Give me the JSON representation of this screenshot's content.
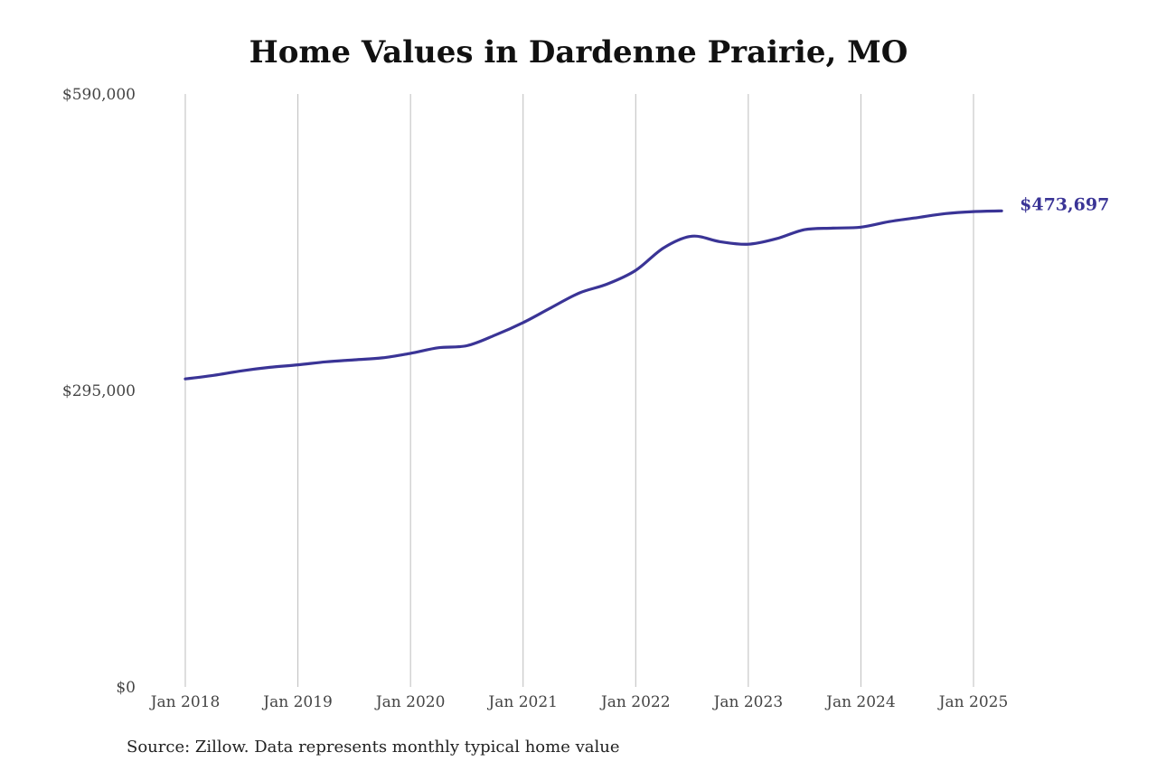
{
  "chart_data": {
    "type": "line",
    "title": "Home Values in Dardenne Prairie, MO",
    "source": "Source: Zillow. Data represents monthly typical home value",
    "xlabel": "",
    "ylabel": "",
    "ylim": [
      0,
      590000
    ],
    "y_ticks": [
      {
        "value": 0,
        "label": "$0"
      },
      {
        "value": 295000,
        "label": "$295,000"
      },
      {
        "value": 590000,
        "label": "$590,000"
      }
    ],
    "x_ticks": [
      {
        "value": "2018-01",
        "label": "Jan 2018"
      },
      {
        "value": "2019-01",
        "label": "Jan 2019"
      },
      {
        "value": "2020-01",
        "label": "Jan 2020"
      },
      {
        "value": "2021-01",
        "label": "Jan 2021"
      },
      {
        "value": "2022-01",
        "label": "Jan 2022"
      },
      {
        "value": "2023-01",
        "label": "Jan 2023"
      },
      {
        "value": "2024-01",
        "label": "Jan 2024"
      },
      {
        "value": "2025-01",
        "label": "Jan 2025"
      }
    ],
    "grid": "vertical",
    "series": [
      {
        "color": "#3a3496",
        "x": [
          "2018-01",
          "2018-04",
          "2018-07",
          "2018-10",
          "2019-01",
          "2019-04",
          "2019-07",
          "2019-10",
          "2020-01",
          "2020-04",
          "2020-07",
          "2020-10",
          "2021-01",
          "2021-04",
          "2021-07",
          "2021-10",
          "2022-01",
          "2022-04",
          "2022-07",
          "2022-10",
          "2023-01",
          "2023-04",
          "2023-07",
          "2023-10",
          "2024-01",
          "2024-04",
          "2024-07",
          "2024-10",
          "2025-01",
          "2025-04"
        ],
        "values": [
          306500,
          310000,
          314500,
          318000,
          320500,
          323500,
          325500,
          327500,
          332000,
          337500,
          339500,
          350000,
          362500,
          377500,
          392000,
          401000,
          414500,
          437000,
          448500,
          443000,
          440500,
          446000,
          455000,
          456500,
          457500,
          463000,
          467000,
          471000,
          473000,
          473697
        ]
      }
    ],
    "end_label": "$473,697"
  }
}
